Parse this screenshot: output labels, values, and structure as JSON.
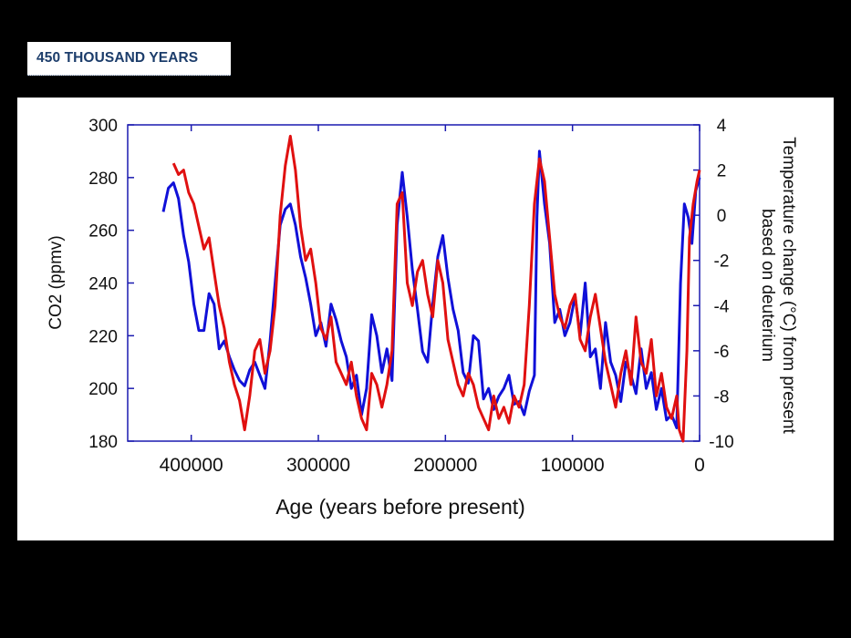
{
  "slide": {
    "title": "450 THOUSAND YEARS"
  },
  "colors": {
    "co2_line": "#1010d8",
    "temperature_line": "#e01010",
    "axis": "#1a1ab0",
    "background": "#ffffff"
  },
  "chart_data": {
    "type": "line",
    "title": "",
    "xlabel": "Age (years before present)",
    "ylabel_left": "CO2 (ppmv)",
    "ylabel_right_lines": [
      "Temperature change (°C) from present",
      "based on deuterium"
    ],
    "xlim": [
      450000,
      0
    ],
    "ylim_left": [
      180,
      300
    ],
    "ylim_right": [
      -10,
      4
    ],
    "x_ticks": [
      400000,
      300000,
      200000,
      100000,
      0
    ],
    "y_left_ticks": [
      180,
      200,
      220,
      240,
      260,
      280,
      300
    ],
    "y_right_ticks": [
      -10,
      -8,
      -6,
      -4,
      -2,
      0,
      2,
      4
    ],
    "grid": false,
    "series": [
      {
        "axis": "left",
        "x": [
          422000,
          418000,
          414000,
          410000,
          406000,
          402000,
          398000,
          394000,
          390000,
          386000,
          382000,
          378000,
          374000,
          370000,
          366000,
          362000,
          358000,
          354000,
          350000,
          346000,
          342000,
          338000,
          334000,
          330000,
          326000,
          322000,
          318000,
          314000,
          310000,
          306000,
          302000,
          298000,
          294000,
          290000,
          286000,
          282000,
          278000,
          274000,
          270000,
          266000,
          262000,
          258000,
          254000,
          250000,
          246000,
          242000,
          238000,
          234000,
          230000,
          226000,
          222000,
          218000,
          214000,
          210000,
          206000,
          202000,
          198000,
          194000,
          190000,
          186000,
          182000,
          178000,
          174000,
          170000,
          166000,
          162000,
          158000,
          154000,
          150000,
          146000,
          142000,
          138000,
          134000,
          130000,
          128000,
          126000,
          122000,
          118000,
          114000,
          110000,
          106000,
          102000,
          98000,
          94000,
          90000,
          86000,
          82000,
          78000,
          74000,
          70000,
          66000,
          62000,
          58000,
          54000,
          50000,
          46000,
          42000,
          38000,
          34000,
          30000,
          26000,
          22000,
          18000,
          15000,
          12000,
          9000,
          6000,
          3000,
          0
        ],
        "values": [
          267,
          276,
          278,
          272,
          258,
          248,
          232,
          222,
          222,
          236,
          232,
          215,
          218,
          212,
          207,
          203,
          201,
          207,
          210,
          205,
          200,
          218,
          240,
          262,
          268,
          270,
          262,
          250,
          242,
          232,
          220,
          225,
          216,
          232,
          226,
          218,
          212,
          200,
          205,
          190,
          200,
          228,
          220,
          206,
          215,
          203,
          262,
          282,
          265,
          245,
          230,
          214,
          210,
          232,
          250,
          258,
          242,
          230,
          222,
          206,
          202,
          220,
          218,
          196,
          200,
          192,
          197,
          200,
          205,
          194,
          195,
          190,
          199,
          205,
          265,
          290,
          270,
          255,
          225,
          230,
          220,
          225,
          235,
          220,
          240,
          212,
          215,
          200,
          225,
          210,
          205,
          195,
          210,
          205,
          198,
          215,
          200,
          206,
          192,
          200,
          188,
          190,
          185,
          240,
          270,
          265,
          255,
          275,
          280
        ]
      },
      {
        "axis": "right",
        "x": [
          414000,
          410000,
          406000,
          402000,
          398000,
          394000,
          390000,
          386000,
          382000,
          378000,
          374000,
          370000,
          366000,
          362000,
          358000,
          354000,
          350000,
          346000,
          342000,
          338000,
          334000,
          330000,
          326000,
          322000,
          318000,
          314000,
          310000,
          306000,
          302000,
          298000,
          294000,
          290000,
          286000,
          282000,
          278000,
          274000,
          270000,
          266000,
          262000,
          258000,
          254000,
          250000,
          246000,
          242000,
          238000,
          234000,
          230000,
          226000,
          222000,
          218000,
          214000,
          210000,
          206000,
          202000,
          198000,
          194000,
          190000,
          186000,
          182000,
          178000,
          174000,
          170000,
          166000,
          162000,
          158000,
          154000,
          150000,
          146000,
          142000,
          138000,
          134000,
          130000,
          126000,
          122000,
          118000,
          114000,
          110000,
          106000,
          102000,
          98000,
          94000,
          90000,
          86000,
          82000,
          78000,
          74000,
          70000,
          66000,
          62000,
          58000,
          54000,
          50000,
          46000,
          42000,
          38000,
          34000,
          30000,
          26000,
          22000,
          18000,
          16000,
          13000,
          10000,
          8000,
          5000,
          2000,
          0
        ],
        "values": [
          2.3,
          1.8,
          2.0,
          1.0,
          0.5,
          -0.5,
          -1.5,
          -1.0,
          -2.5,
          -4.0,
          -5.0,
          -6.5,
          -7.5,
          -8.2,
          -9.5,
          -8.0,
          -6.0,
          -5.5,
          -7.0,
          -6.0,
          -4.0,
          0.0,
          2.2,
          3.5,
          2.0,
          -0.5,
          -2.0,
          -1.5,
          -3.0,
          -5.0,
          -5.5,
          -4.5,
          -6.5,
          -7.0,
          -7.5,
          -6.5,
          -8.0,
          -9.0,
          -9.5,
          -7.0,
          -7.5,
          -8.5,
          -7.5,
          -6.0,
          0.5,
          1.0,
          -3.0,
          -4.0,
          -2.5,
          -2.0,
          -3.5,
          -4.5,
          -2.0,
          -3.0,
          -5.5,
          -6.5,
          -7.5,
          -8.0,
          -7.0,
          -7.5,
          -8.5,
          -9.0,
          -9.5,
          -8.0,
          -9.0,
          -8.5,
          -9.2,
          -8.0,
          -8.5,
          -7.5,
          -4.0,
          0.5,
          2.5,
          1.5,
          -1.0,
          -3.5,
          -4.5,
          -5.0,
          -4.0,
          -3.5,
          -5.5,
          -6.0,
          -4.5,
          -3.5,
          -5.0,
          -6.5,
          -7.5,
          -8.5,
          -7.0,
          -6.0,
          -7.5,
          -4.5,
          -6.5,
          -7.0,
          -5.5,
          -8.0,
          -7.0,
          -8.5,
          -9.0,
          -8.0,
          -9.5,
          -10.0,
          -6.0,
          -1.0,
          0.5,
          1.5,
          2.0
        ]
      }
    ]
  }
}
